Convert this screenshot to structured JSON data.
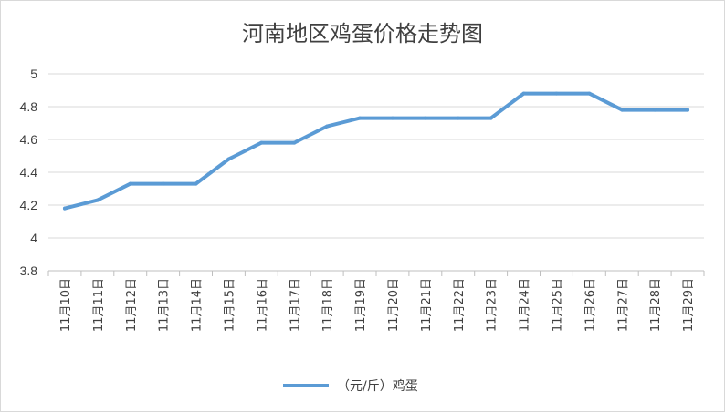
{
  "chart_data": {
    "type": "line",
    "title": "河南地区鸡蛋价格走势图",
    "xlabel": "",
    "ylabel": "",
    "categories": [
      "11月10日",
      "11月11日",
      "11月12日",
      "11月13日",
      "11月14日",
      "11月15日",
      "11月16日",
      "11月17日",
      "11月18日",
      "11月19日",
      "11月20日",
      "11月21日",
      "11月22日",
      "11月23日",
      "11月24日",
      "11月25日",
      "11月26日",
      "11月27日",
      "11月28日",
      "11月29日"
    ],
    "series": [
      {
        "name": "（元/斤）鸡蛋",
        "color": "#5b9bd5",
        "values": [
          4.18,
          4.23,
          4.33,
          4.33,
          4.33,
          4.48,
          4.58,
          4.58,
          4.68,
          4.73,
          4.73,
          4.73,
          4.73,
          4.73,
          4.88,
          4.88,
          4.88,
          4.78,
          4.78,
          4.78
        ]
      }
    ],
    "ylim": [
      3.8,
      5
    ],
    "yticks": [
      "3.8",
      "4",
      "4.2",
      "4.4",
      "4.6",
      "4.8",
      "5"
    ],
    "grid": true,
    "legend": "bottom"
  }
}
